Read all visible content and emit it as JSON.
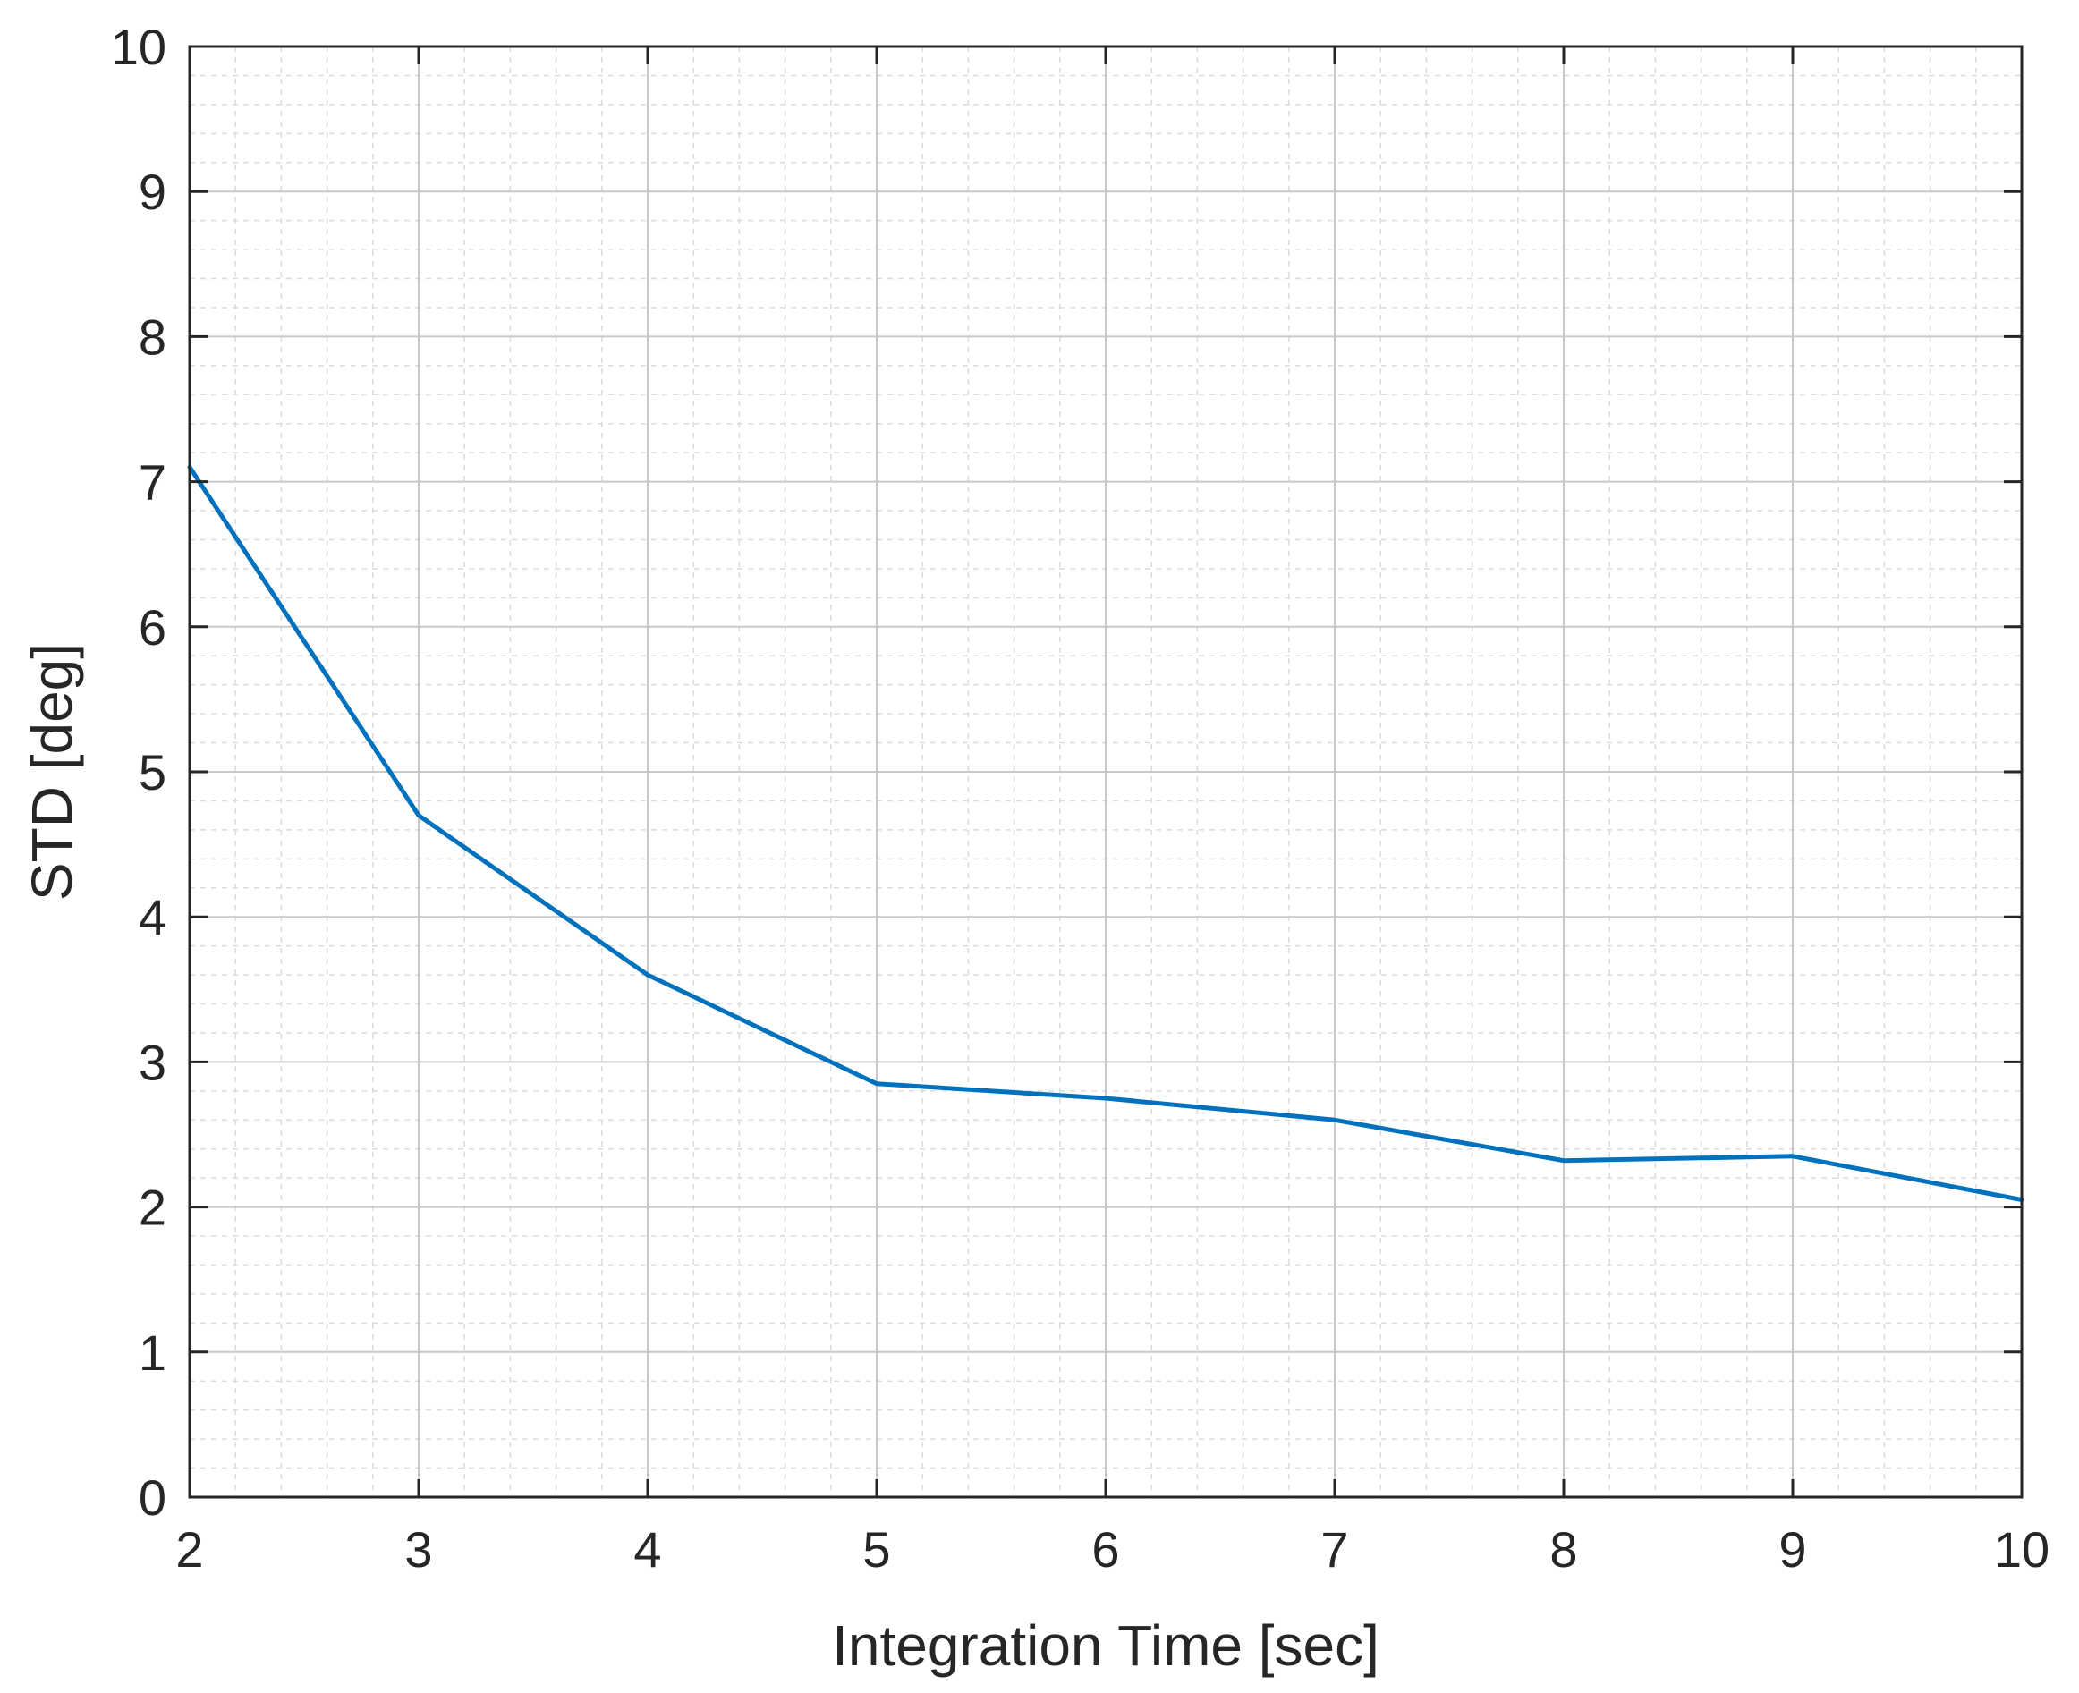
{
  "chart_data": {
    "type": "line",
    "title": "",
    "xlabel": "Integration Time [sec]",
    "ylabel": "STD [deg]",
    "xlim": [
      2,
      10
    ],
    "ylim": [
      0,
      10
    ],
    "x_ticks": [
      "2",
      "3",
      "4",
      "5",
      "6",
      "7",
      "8",
      "9",
      "10"
    ],
    "y_ticks": [
      "0",
      "1",
      "2",
      "3",
      "4",
      "5",
      "6",
      "7",
      "8",
      "9",
      "10"
    ],
    "grid": true,
    "minor_grid": true,
    "series": [
      {
        "x": [
          2,
          3,
          4,
          5,
          6,
          7,
          8,
          9,
          10
        ],
        "y": [
          7.1,
          4.7,
          3.6,
          2.85,
          2.75,
          2.6,
          2.32,
          2.35,
          2.05
        ],
        "color": "#0072BD"
      }
    ]
  }
}
